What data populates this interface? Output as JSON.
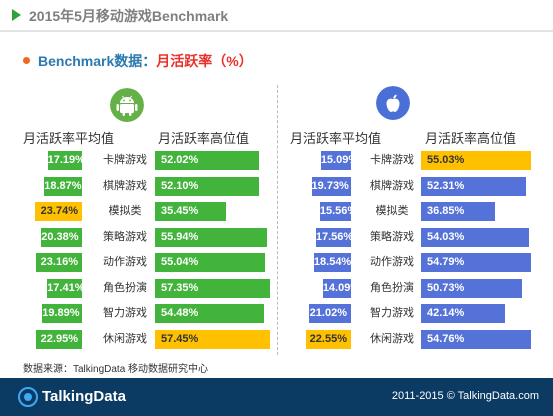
{
  "header": {
    "title": "2015年5月移动游戏Benchmark"
  },
  "subtitle": {
    "part1": "Benchmark数据：",
    "part2": "月活跃率（%）"
  },
  "chart_data": {
    "type": "bar",
    "categories": [
      "卡牌游戏",
      "棋牌游戏",
      "模拟类",
      "策略游戏",
      "动作游戏",
      "角色扮演",
      "智力游戏",
      "休闲游戏"
    ],
    "panels": [
      {
        "platform_icon": "android-icon",
        "series": [
          {
            "name": "月活跃率平均值",
            "values": [
              17.19,
              18.87,
              23.74,
              20.38,
              23.16,
              17.41,
              19.89,
              22.95
            ],
            "labels": [
              "17.19%",
              "18.87%",
              "23.74%",
              "20.38%",
              "23.16%",
              "17.41%",
              "19.89%",
              "22.95%"
            ]
          },
          {
            "name": "月活跃率高位值",
            "values": [
              52.02,
              52.1,
              35.45,
              55.94,
              55.04,
              57.35,
              54.48,
              57.45
            ],
            "labels": [
              "52.02%",
              "52.10%",
              "35.45%",
              "55.94%",
              "55.04%",
              "57.35%",
              "54.48%",
              "57.45%"
            ]
          }
        ],
        "highlight": {
          "avg": 2,
          "high": 7
        }
      },
      {
        "platform_icon": "apple-icon",
        "series": [
          {
            "name": "月活跃率平均值",
            "values": [
              15.09,
              19.73,
              15.56,
              17.56,
              18.54,
              14.09,
              21.02,
              22.55
            ],
            "labels": [
              "15.09%",
              "19.73%",
              "15.56%",
              "17.56%",
              "18.54%",
              "14.09%",
              "21.02%",
              "22.55%"
            ]
          },
          {
            "name": "月活跃率高位值",
            "values": [
              55.03,
              52.31,
              36.85,
              54.03,
              54.79,
              50.73,
              42.14,
              54.76
            ],
            "labels": [
              "55.03%",
              "52.31%",
              "36.85%",
              "54.03%",
              "54.79%",
              "50.73%",
              "42.14%",
              "54.76%"
            ]
          }
        ],
        "highlight": {
          "avg": 7,
          "high": 0
        }
      }
    ]
  },
  "colors": {
    "android_bar": "#42b33b",
    "ios_bar": "#5472d8",
    "highlight_bar": "#ffc000",
    "android_icon": "#66b04a",
    "ios_icon": "#4a6fd6"
  },
  "source": "数据来源：TalkingData 移动数据研究中心",
  "footer": {
    "brand": "TalkingData",
    "copyright": "2011-2015 © TalkingData.com"
  }
}
